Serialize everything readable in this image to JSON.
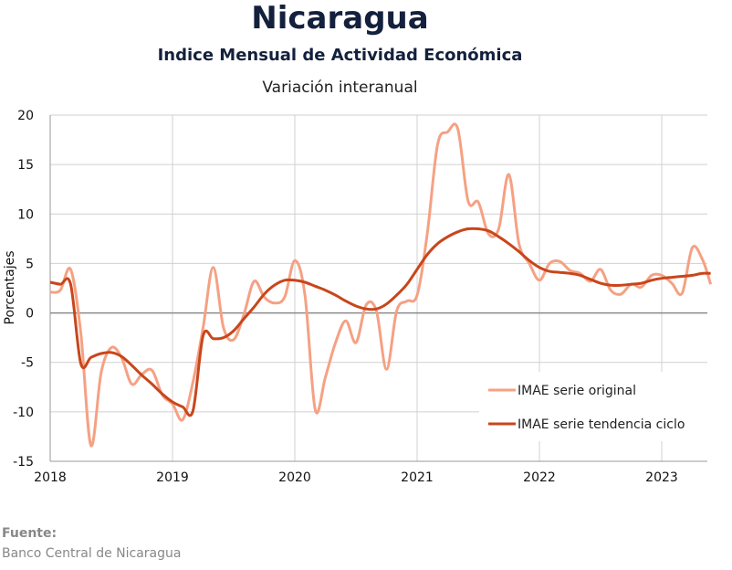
{
  "header": {
    "title": "Nicaragua",
    "subtitle": "Indice Mensual de  Actividad Económica",
    "subsubtitle": "Variación interanual"
  },
  "source": {
    "label": "Fuente:",
    "text": "Banco Central de Nicaragua"
  },
  "chart_data": {
    "type": "line",
    "ylabel": "Porcentajes",
    "xlabel": "",
    "xlim": [
      2018.0,
      2023.4
    ],
    "ylim": [
      -15,
      20
    ],
    "y_ticks": [
      20,
      15,
      10,
      5,
      0,
      -5,
      -10,
      -15
    ],
    "x_ticks": [
      "2018",
      "2019",
      "2020",
      "2021",
      "2022",
      "2023"
    ],
    "grid": true,
    "legend_position": "bottom-right",
    "series": [
      {
        "name": "IMAE serie original",
        "color": "#f5a183",
        "x": [
          2018.0,
          2018.083,
          2018.167,
          2018.25,
          2018.333,
          2018.417,
          2018.5,
          2018.583,
          2018.667,
          2018.75,
          2018.833,
          2018.917,
          2019.0,
          2019.083,
          2019.167,
          2019.25,
          2019.333,
          2019.417,
          2019.5,
          2019.583,
          2019.667,
          2019.75,
          2019.833,
          2019.917,
          2020.0,
          2020.083,
          2020.167,
          2020.25,
          2020.333,
          2020.417,
          2020.5,
          2020.583,
          2020.667,
          2020.75,
          2020.833,
          2020.917,
          2021.0,
          2021.083,
          2021.167,
          2021.25,
          2021.333,
          2021.417,
          2021.5,
          2021.583,
          2021.667,
          2021.75,
          2021.833,
          2021.917,
          2022.0,
          2022.083,
          2022.167,
          2022.25,
          2022.333,
          2022.417,
          2022.5,
          2022.583,
          2022.667,
          2022.75,
          2022.833,
          2022.917,
          2023.0,
          2023.083,
          2023.167,
          2023.25,
          2023.333,
          2023.4
        ],
        "values": [
          2.1,
          2.3,
          4.4,
          -2.0,
          -13.4,
          -6.0,
          -3.5,
          -4.5,
          -7.2,
          -6.2,
          -5.8,
          -8.3,
          -9.2,
          -10.8,
          -7.0,
          -1.5,
          4.6,
          -1.5,
          -2.7,
          -0.2,
          3.2,
          1.6,
          1.0,
          1.6,
          5.3,
          1.8,
          -9.8,
          -6.5,
          -3.0,
          -0.8,
          -3.0,
          0.8,
          0.2,
          -5.7,
          0.2,
          1.2,
          1.8,
          8.0,
          17.0,
          18.3,
          18.6,
          11.3,
          11.2,
          8.0,
          8.5,
          14.0,
          7.0,
          5.0,
          3.3,
          5.0,
          5.2,
          4.3,
          4.0,
          3.2,
          4.4,
          2.3,
          1.9,
          2.9,
          2.6,
          3.8,
          3.8,
          3.0,
          2.0,
          6.6,
          5.4,
          2.9
        ]
      },
      {
        "name": "IMAE serie  tendencia ciclo",
        "color": "#c8461b",
        "x": [
          2018.0,
          2018.083,
          2018.167,
          2018.25,
          2018.333,
          2018.417,
          2018.5,
          2018.583,
          2018.667,
          2018.75,
          2018.833,
          2018.917,
          2019.0,
          2019.083,
          2019.167,
          2019.25,
          2019.333,
          2019.417,
          2019.5,
          2019.583,
          2019.667,
          2019.75,
          2019.833,
          2019.917,
          2020.0,
          2020.083,
          2020.167,
          2020.25,
          2020.333,
          2020.417,
          2020.5,
          2020.583,
          2020.667,
          2020.75,
          2020.833,
          2020.917,
          2021.0,
          2021.083,
          2021.167,
          2021.25,
          2021.333,
          2021.417,
          2021.5,
          2021.583,
          2021.667,
          2021.75,
          2021.833,
          2021.917,
          2022.0,
          2022.083,
          2022.167,
          2022.25,
          2022.333,
          2022.417,
          2022.5,
          2022.583,
          2022.667,
          2022.75,
          2022.833,
          2022.917,
          2023.0,
          2023.083,
          2023.167,
          2023.25,
          2023.333,
          2023.4
        ],
        "values": [
          3.1,
          2.9,
          2.9,
          -5.1,
          -4.5,
          -4.1,
          -4.0,
          -4.4,
          -5.3,
          -6.3,
          -7.2,
          -8.2,
          -9.0,
          -9.5,
          -9.9,
          -2.3,
          -2.6,
          -2.5,
          -1.8,
          -0.6,
          0.6,
          1.9,
          2.8,
          3.3,
          3.3,
          3.1,
          2.7,
          2.3,
          1.8,
          1.2,
          0.7,
          0.4,
          0.4,
          0.9,
          1.8,
          2.9,
          4.4,
          5.9,
          7.0,
          7.7,
          8.2,
          8.5,
          8.5,
          8.3,
          7.7,
          7.0,
          6.2,
          5.3,
          4.6,
          4.2,
          4.1,
          4.0,
          3.8,
          3.4,
          3.0,
          2.8,
          2.8,
          2.9,
          3.0,
          3.3,
          3.5,
          3.6,
          3.7,
          3.8,
          4.0,
          4.0
        ]
      }
    ]
  }
}
